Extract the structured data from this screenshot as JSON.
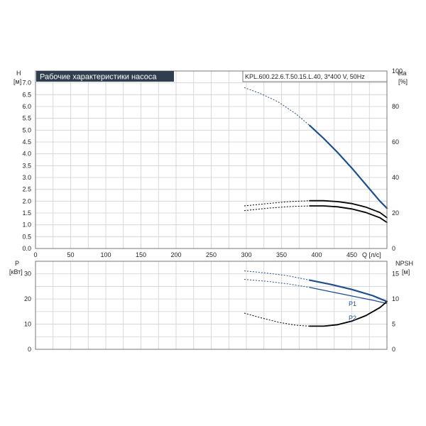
{
  "header": {
    "title": "Рабочие характеристики насоса",
    "model": "KPL.600.22.6.T.50.15.L.40, 3*400 V, 50Hz"
  },
  "colors": {
    "blue": "#1f4e8c",
    "black": "#000000",
    "title_bg": "#2f3f4f",
    "title_text": "#ffffff",
    "grid": "#cfcfcf"
  },
  "chart_data": [
    {
      "type": "line",
      "ylabel": "H",
      "yunit": "[м]",
      "y2label": "eta",
      "y2unit": "[%]",
      "xlabel": "Q [л/с]",
      "xlim": [
        0,
        500
      ],
      "ylim": [
        0,
        7.5
      ],
      "y2lim": [
        0,
        100
      ],
      "xticks": [
        "0",
        "50",
        "100",
        "150",
        "200",
        "250",
        "300",
        "350",
        "400",
        "450"
      ],
      "yticks": [
        "0.0",
        "0.5",
        "1.0",
        "1.5",
        "2.0",
        "2.5",
        "3.0",
        "3.5",
        "4.0",
        "4.5",
        "5.0",
        "5.5",
        "6.0",
        "6.5",
        "7.0"
      ],
      "y2ticks": [
        "0",
        "20",
        "40",
        "60",
        "80",
        "100"
      ],
      "grid": true,
      "series": [
        {
          "color": "#1f4e8c",
          "axis": "left",
          "x": [
            297,
            320,
            345,
            370,
            390,
            410,
            430,
            450,
            470,
            490,
            500
          ],
          "y": [
            6.8,
            6.55,
            6.2,
            5.7,
            5.2,
            4.65,
            4.05,
            3.4,
            2.7,
            2.0,
            1.7
          ],
          "dash_until": 390,
          "width": 2.2
        },
        {
          "color": "#000000",
          "axis": "left",
          "x": [
            297,
            330,
            360,
            390,
            410,
            430,
            450,
            470,
            490,
            500
          ],
          "y": [
            1.8,
            1.9,
            1.98,
            2.02,
            2.02,
            1.98,
            1.9,
            1.75,
            1.52,
            1.3
          ],
          "dash_until": 390,
          "width": 1.8
        },
        {
          "color": "#000000",
          "axis": "left",
          "x": [
            297,
            330,
            360,
            390,
            410,
            430,
            450,
            470,
            490,
            500
          ],
          "y": [
            1.6,
            1.7,
            1.77,
            1.8,
            1.8,
            1.76,
            1.67,
            1.52,
            1.3,
            1.1
          ],
          "dash_until": 390,
          "width": 1.8
        }
      ]
    },
    {
      "type": "line",
      "ylabel": "P",
      "yunit": "[кВт]",
      "y2label": "NPSH",
      "y2unit": "[м]",
      "xlim": [
        0,
        500
      ],
      "ylim": [
        0,
        35
      ],
      "y2lim": [
        0,
        17.5
      ],
      "yticks": [
        "0",
        "10",
        "20",
        "30"
      ],
      "y2ticks": [
        "0",
        "5",
        "10",
        "15"
      ],
      "grid": true,
      "series": [
        {
          "name": "P1",
          "color": "#1f4e8c",
          "axis": "left",
          "x": [
            297,
            330,
            360,
            390,
            420,
            450,
            480,
            500
          ],
          "y": [
            31.2,
            30.3,
            29.2,
            27.5,
            25.8,
            23.8,
            21.3,
            19.0
          ],
          "dash_until": 390,
          "width": 2.2
        },
        {
          "name": "P2",
          "color": "#1f4e8c",
          "axis": "left",
          "x": [
            297,
            330,
            360,
            390,
            420,
            450,
            480,
            500
          ],
          "y": [
            27.8,
            27.0,
            26.0,
            24.6,
            22.9,
            21.2,
            19.5,
            18.2
          ],
          "dash_until": 390,
          "width": 1.3
        },
        {
          "color": "#000000",
          "axis": "right",
          "x": [
            297,
            320,
            345,
            370,
            390,
            410,
            430,
            450,
            470,
            490,
            500
          ],
          "y": [
            7.2,
            6.3,
            5.4,
            4.8,
            4.6,
            4.6,
            4.9,
            5.6,
            6.7,
            8.3,
            9.5
          ],
          "dash_until": 390,
          "width": 1.8
        }
      ]
    }
  ]
}
